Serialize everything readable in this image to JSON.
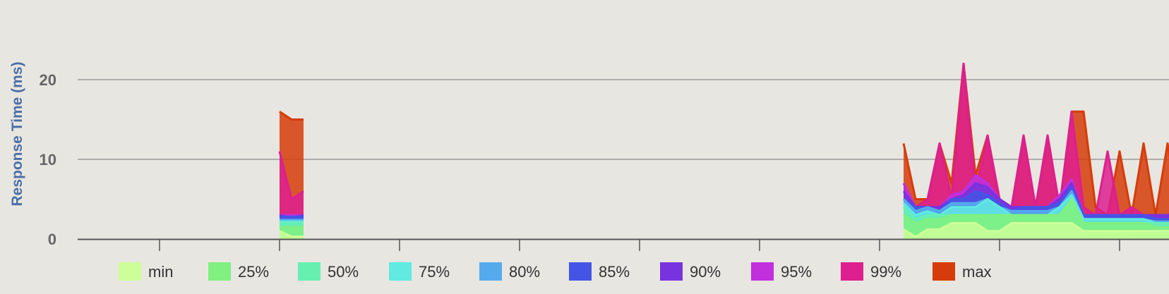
{
  "chart_data": {
    "type": "area",
    "stacked": false,
    "ylabel": "Response Time (ms)",
    "xlabel": "",
    "ylim": [
      0,
      25
    ],
    "yticks": [
      0,
      10,
      20
    ],
    "grid": true,
    "legend_placement": "bottom",
    "x": [
      1.0,
      1.1,
      1.2,
      6.2,
      6.3,
      6.4,
      6.5,
      6.6,
      6.7,
      6.8,
      6.9,
      7.0,
      7.1,
      7.2,
      7.3,
      7.4,
      7.5,
      7.6,
      7.7,
      7.8,
      7.9,
      8.0,
      8.1,
      8.2,
      8.3,
      8.4,
      8.5,
      8.6,
      8.7,
      8.8,
      8.9,
      9.0,
      9.1,
      9.2
    ],
    "segments": [
      [
        0,
        2
      ],
      [
        3,
        33
      ]
    ],
    "series": [
      {
        "name": "min",
        "color": "#ccff99",
        "values": [
          1.0,
          0.3,
          0.3,
          1.2,
          0.3,
          1.2,
          1.2,
          2,
          2,
          2,
          1,
          1,
          2,
          2,
          2,
          2,
          2,
          2,
          1,
          1,
          1,
          1,
          1,
          1,
          1,
          1,
          1,
          1,
          1,
          1,
          1,
          1,
          1,
          1
        ]
      },
      {
        "name": "25%",
        "color": "#80f080",
        "values": [
          1.5,
          1.5,
          1.5,
          3,
          2,
          2.5,
          2.5,
          3,
          3,
          3,
          3,
          3,
          3,
          3,
          3,
          3,
          3,
          5,
          2,
          2,
          2,
          2,
          2,
          2,
          1.5,
          1.5,
          1.5,
          1.5,
          1.5,
          1.5,
          1.5,
          2,
          2,
          2
        ]
      },
      {
        "name": "50%",
        "color": "#66f0b0",
        "values": [
          2,
          2,
          2,
          4,
          2.5,
          3,
          3,
          3,
          3,
          3,
          3,
          3,
          3,
          3,
          3,
          3,
          3,
          5,
          2,
          2,
          2,
          2,
          2,
          2,
          2,
          2,
          2,
          2,
          2,
          2,
          2,
          2,
          2,
          2
        ]
      },
      {
        "name": "75%",
        "color": "#60eae0",
        "values": [
          2.2,
          2.2,
          2.2,
          4.5,
          3,
          3.5,
          3,
          4,
          4,
          4,
          5,
          4,
          3,
          3,
          3,
          3,
          4,
          5.5,
          2.5,
          2.5,
          2.5,
          2.5,
          2.5,
          2.5,
          2,
          2,
          2,
          2,
          2,
          2,
          2.5,
          2,
          3,
          3
        ]
      },
      {
        "name": "80%",
        "color": "#55aaee",
        "values": [
          2.4,
          2.4,
          2.4,
          5,
          3.5,
          4,
          3.5,
          4.5,
          4.5,
          4.5,
          5,
          4,
          3.5,
          3.5,
          3.5,
          3.5,
          4,
          6,
          2.5,
          2.5,
          2.5,
          2.5,
          2.5,
          2.5,
          2.2,
          2.2,
          2.2,
          2.2,
          2.2,
          2.2,
          3,
          2.5,
          3.5,
          3.5
        ]
      },
      {
        "name": "85%",
        "color": "#4455e5",
        "values": [
          2.8,
          2.8,
          2.8,
          5,
          4,
          4,
          3.5,
          5,
          5,
          6,
          5.5,
          4.5,
          3.5,
          4,
          4,
          4,
          4.5,
          6.5,
          3,
          3,
          3,
          3,
          3,
          3,
          2.5,
          2.5,
          2.5,
          2.5,
          2.5,
          2.5,
          3,
          3,
          3.5,
          4
        ]
      },
      {
        "name": "90%",
        "color": "#7733dd",
        "values": [
          3,
          2.7,
          3,
          6,
          4,
          4,
          4,
          5,
          5.5,
          7,
          6.5,
          5,
          4,
          4,
          4,
          4,
          5,
          7,
          3,
          3,
          3,
          3,
          3,
          3,
          3,
          3,
          3,
          3,
          3,
          3.5,
          4,
          4,
          4,
          5
        ]
      },
      {
        "name": "95%",
        "color": "#c030dd",
        "values": [
          3,
          3,
          3,
          7,
          4,
          4,
          4,
          5.5,
          6,
          8,
          7,
          5,
          4,
          4,
          4,
          4,
          5.5,
          7.5,
          3,
          3,
          3,
          3,
          3,
          3,
          3,
          3,
          3,
          3,
          3,
          3.5,
          4,
          4,
          4.5,
          5.5
        ]
      },
      {
        "name": "99%",
        "color": "#dd1f8f",
        "values": [
          11,
          5,
          6,
          7,
          4,
          5,
          12,
          5,
          22,
          6,
          13,
          5,
          4,
          13,
          4,
          13,
          4,
          16,
          4,
          3,
          11,
          3,
          4,
          3,
          3,
          3,
          4,
          3,
          4,
          12,
          4,
          5,
          5,
          5
        ]
      },
      {
        "name": "max",
        "color": "#d63c0a",
        "values": [
          16,
          15,
          15,
          12,
          5,
          5,
          12,
          7,
          22,
          8,
          13,
          5,
          4,
          13,
          4,
          13,
          4,
          16,
          16,
          4,
          3,
          11,
          3,
          12,
          3,
          12,
          3,
          4,
          12,
          3,
          12,
          4,
          5,
          15
        ]
      }
    ]
  },
  "legend": [
    {
      "label": "min",
      "color": "#ccff99"
    },
    {
      "label": "25%",
      "color": "#80f080"
    },
    {
      "label": "50%",
      "color": "#66f0b0"
    },
    {
      "label": "75%",
      "color": "#60eae0"
    },
    {
      "label": "80%",
      "color": "#55aaee"
    },
    {
      "label": "85%",
      "color": "#4455e5"
    },
    {
      "label": "90%",
      "color": "#7733dd"
    },
    {
      "label": "95%",
      "color": "#c030dd"
    },
    {
      "label": "99%",
      "color": "#dd1f8f"
    },
    {
      "label": "max",
      "color": "#d63c0a"
    }
  ]
}
